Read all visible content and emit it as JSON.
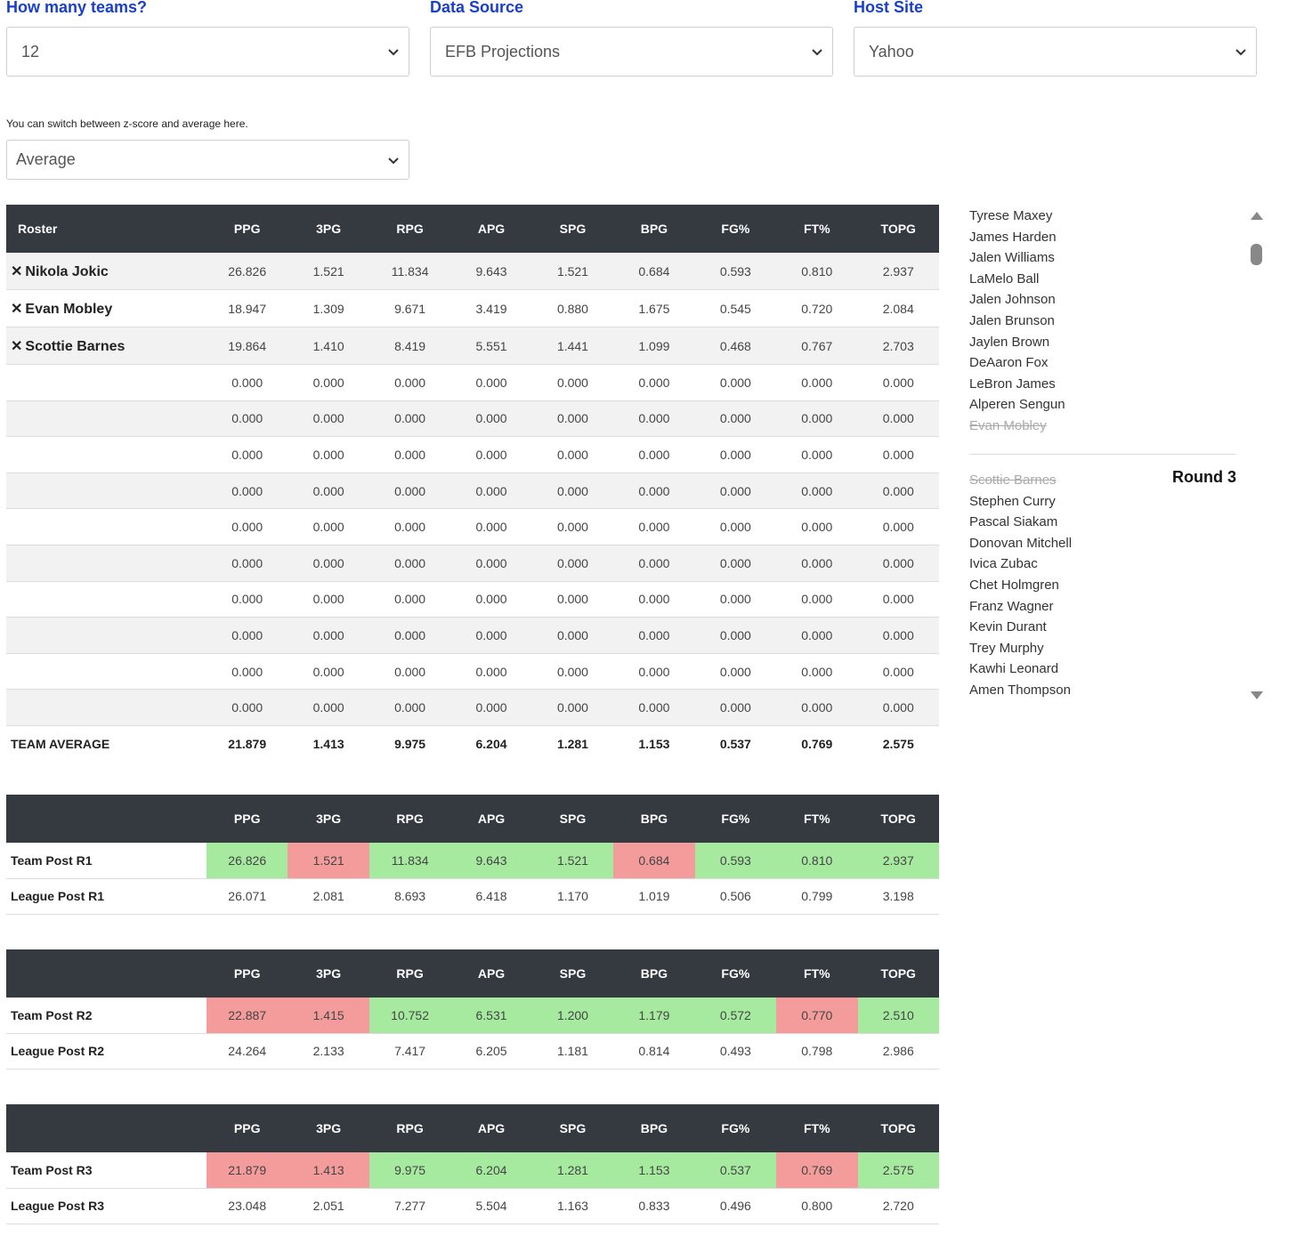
{
  "filters": {
    "teams": {
      "label": "How many teams?",
      "value": "12"
    },
    "source": {
      "label": "Data Source",
      "value": "EFB Projections"
    },
    "host": {
      "label": "Host Site",
      "value": "Yahoo"
    },
    "mode_hint": "You can switch between z-score and average here.",
    "mode": {
      "value": "Average"
    }
  },
  "columns": [
    "PPG",
    "3PG",
    "RPG",
    "APG",
    "SPG",
    "BPG",
    "FG%",
    "FT%",
    "TOPG"
  ],
  "roster": {
    "header": "Roster",
    "players": [
      {
        "name": "Nikola Jokic",
        "stats": [
          "26.826",
          "1.521",
          "11.834",
          "9.643",
          "1.521",
          "0.684",
          "0.593",
          "0.810",
          "2.937"
        ]
      },
      {
        "name": "Evan Mobley",
        "stats": [
          "18.947",
          "1.309",
          "9.671",
          "3.419",
          "0.880",
          "1.675",
          "0.545",
          "0.720",
          "2.084"
        ]
      },
      {
        "name": "Scottie Barnes",
        "stats": [
          "19.864",
          "1.410",
          "8.419",
          "5.551",
          "1.441",
          "1.099",
          "0.468",
          "0.767",
          "2.703"
        ]
      }
    ],
    "empty_stats": [
      "0.000",
      "0.000",
      "0.000",
      "0.000",
      "0.000",
      "0.000",
      "0.000",
      "0.000",
      "0.000"
    ],
    "empty_row_count": 10,
    "average_label": "TEAM AVERAGE",
    "average": [
      "21.879",
      "1.413",
      "9.975",
      "6.204",
      "1.281",
      "1.153",
      "0.537",
      "0.769",
      "2.575"
    ]
  },
  "rounds": [
    {
      "team_label": "Team Post R1",
      "team": [
        "26.826",
        "1.521",
        "11.834",
        "9.643",
        "1.521",
        "0.684",
        "0.593",
        "0.810",
        "2.937"
      ],
      "status": [
        "good",
        "bad",
        "good",
        "good",
        "good",
        "bad",
        "good",
        "good",
        "good"
      ],
      "league_label": "League Post R1",
      "league": [
        "26.071",
        "2.081",
        "8.693",
        "6.418",
        "1.170",
        "1.019",
        "0.506",
        "0.799",
        "3.198"
      ]
    },
    {
      "team_label": "Team Post R2",
      "team": [
        "22.887",
        "1.415",
        "10.752",
        "6.531",
        "1.200",
        "1.179",
        "0.572",
        "0.770",
        "2.510"
      ],
      "status": [
        "bad",
        "bad",
        "good",
        "good",
        "good",
        "good",
        "good",
        "bad",
        "good"
      ],
      "league_label": "League Post R2",
      "league": [
        "24.264",
        "2.133",
        "7.417",
        "6.205",
        "1.181",
        "0.814",
        "0.493",
        "0.798",
        "2.986"
      ]
    },
    {
      "team_label": "Team Post R3",
      "team": [
        "21.879",
        "1.413",
        "9.975",
        "6.204",
        "1.281",
        "1.153",
        "0.537",
        "0.769",
        "2.575"
      ],
      "status": [
        "bad",
        "bad",
        "good",
        "good",
        "good",
        "good",
        "good",
        "bad",
        "good"
      ],
      "league_label": "League Post R3",
      "league": [
        "23.048",
        "2.051",
        "7.277",
        "5.504",
        "1.163",
        "0.833",
        "0.496",
        "0.800",
        "2.720"
      ]
    }
  ],
  "draft_list": {
    "group1": [
      {
        "name": "Tyrese Maxey",
        "taken": false
      },
      {
        "name": "James Harden",
        "taken": false
      },
      {
        "name": "Jalen Williams",
        "taken": false
      },
      {
        "name": "LaMelo Ball",
        "taken": false
      },
      {
        "name": "Jalen Johnson",
        "taken": false
      },
      {
        "name": "Jalen Brunson",
        "taken": false
      },
      {
        "name": "Jaylen Brown",
        "taken": false
      },
      {
        "name": "DeAaron Fox",
        "taken": false
      },
      {
        "name": "LeBron James",
        "taken": false
      },
      {
        "name": "Alperen Sengun",
        "taken": false
      },
      {
        "name": "Evan Mobley",
        "taken": true
      }
    ],
    "round_label": "Round 3",
    "group2": [
      {
        "name": "Scottie Barnes",
        "taken": true
      },
      {
        "name": "Stephen Curry",
        "taken": false
      },
      {
        "name": "Pascal Siakam",
        "taken": false
      },
      {
        "name": "Donovan Mitchell",
        "taken": false
      },
      {
        "name": "Ivica Zubac",
        "taken": false
      },
      {
        "name": "Chet Holmgren",
        "taken": false
      },
      {
        "name": "Franz Wagner",
        "taken": false
      },
      {
        "name": "Kevin Durant",
        "taken": false
      },
      {
        "name": "Trey Murphy",
        "taken": false
      },
      {
        "name": "Kawhi Leonard",
        "taken": false
      },
      {
        "name": "Amen Thompson",
        "taken": false
      }
    ]
  },
  "colors": {
    "good": "#a6eaa0",
    "bad": "#f49b9b",
    "header_bg": "#343a40",
    "label_blue": "#1a3fc7"
  },
  "icons": {
    "remove": "close-x-icon",
    "select": "chevron-down-icon",
    "scroll_up": "triangle-up-icon",
    "scroll_down": "triangle-down-icon"
  }
}
